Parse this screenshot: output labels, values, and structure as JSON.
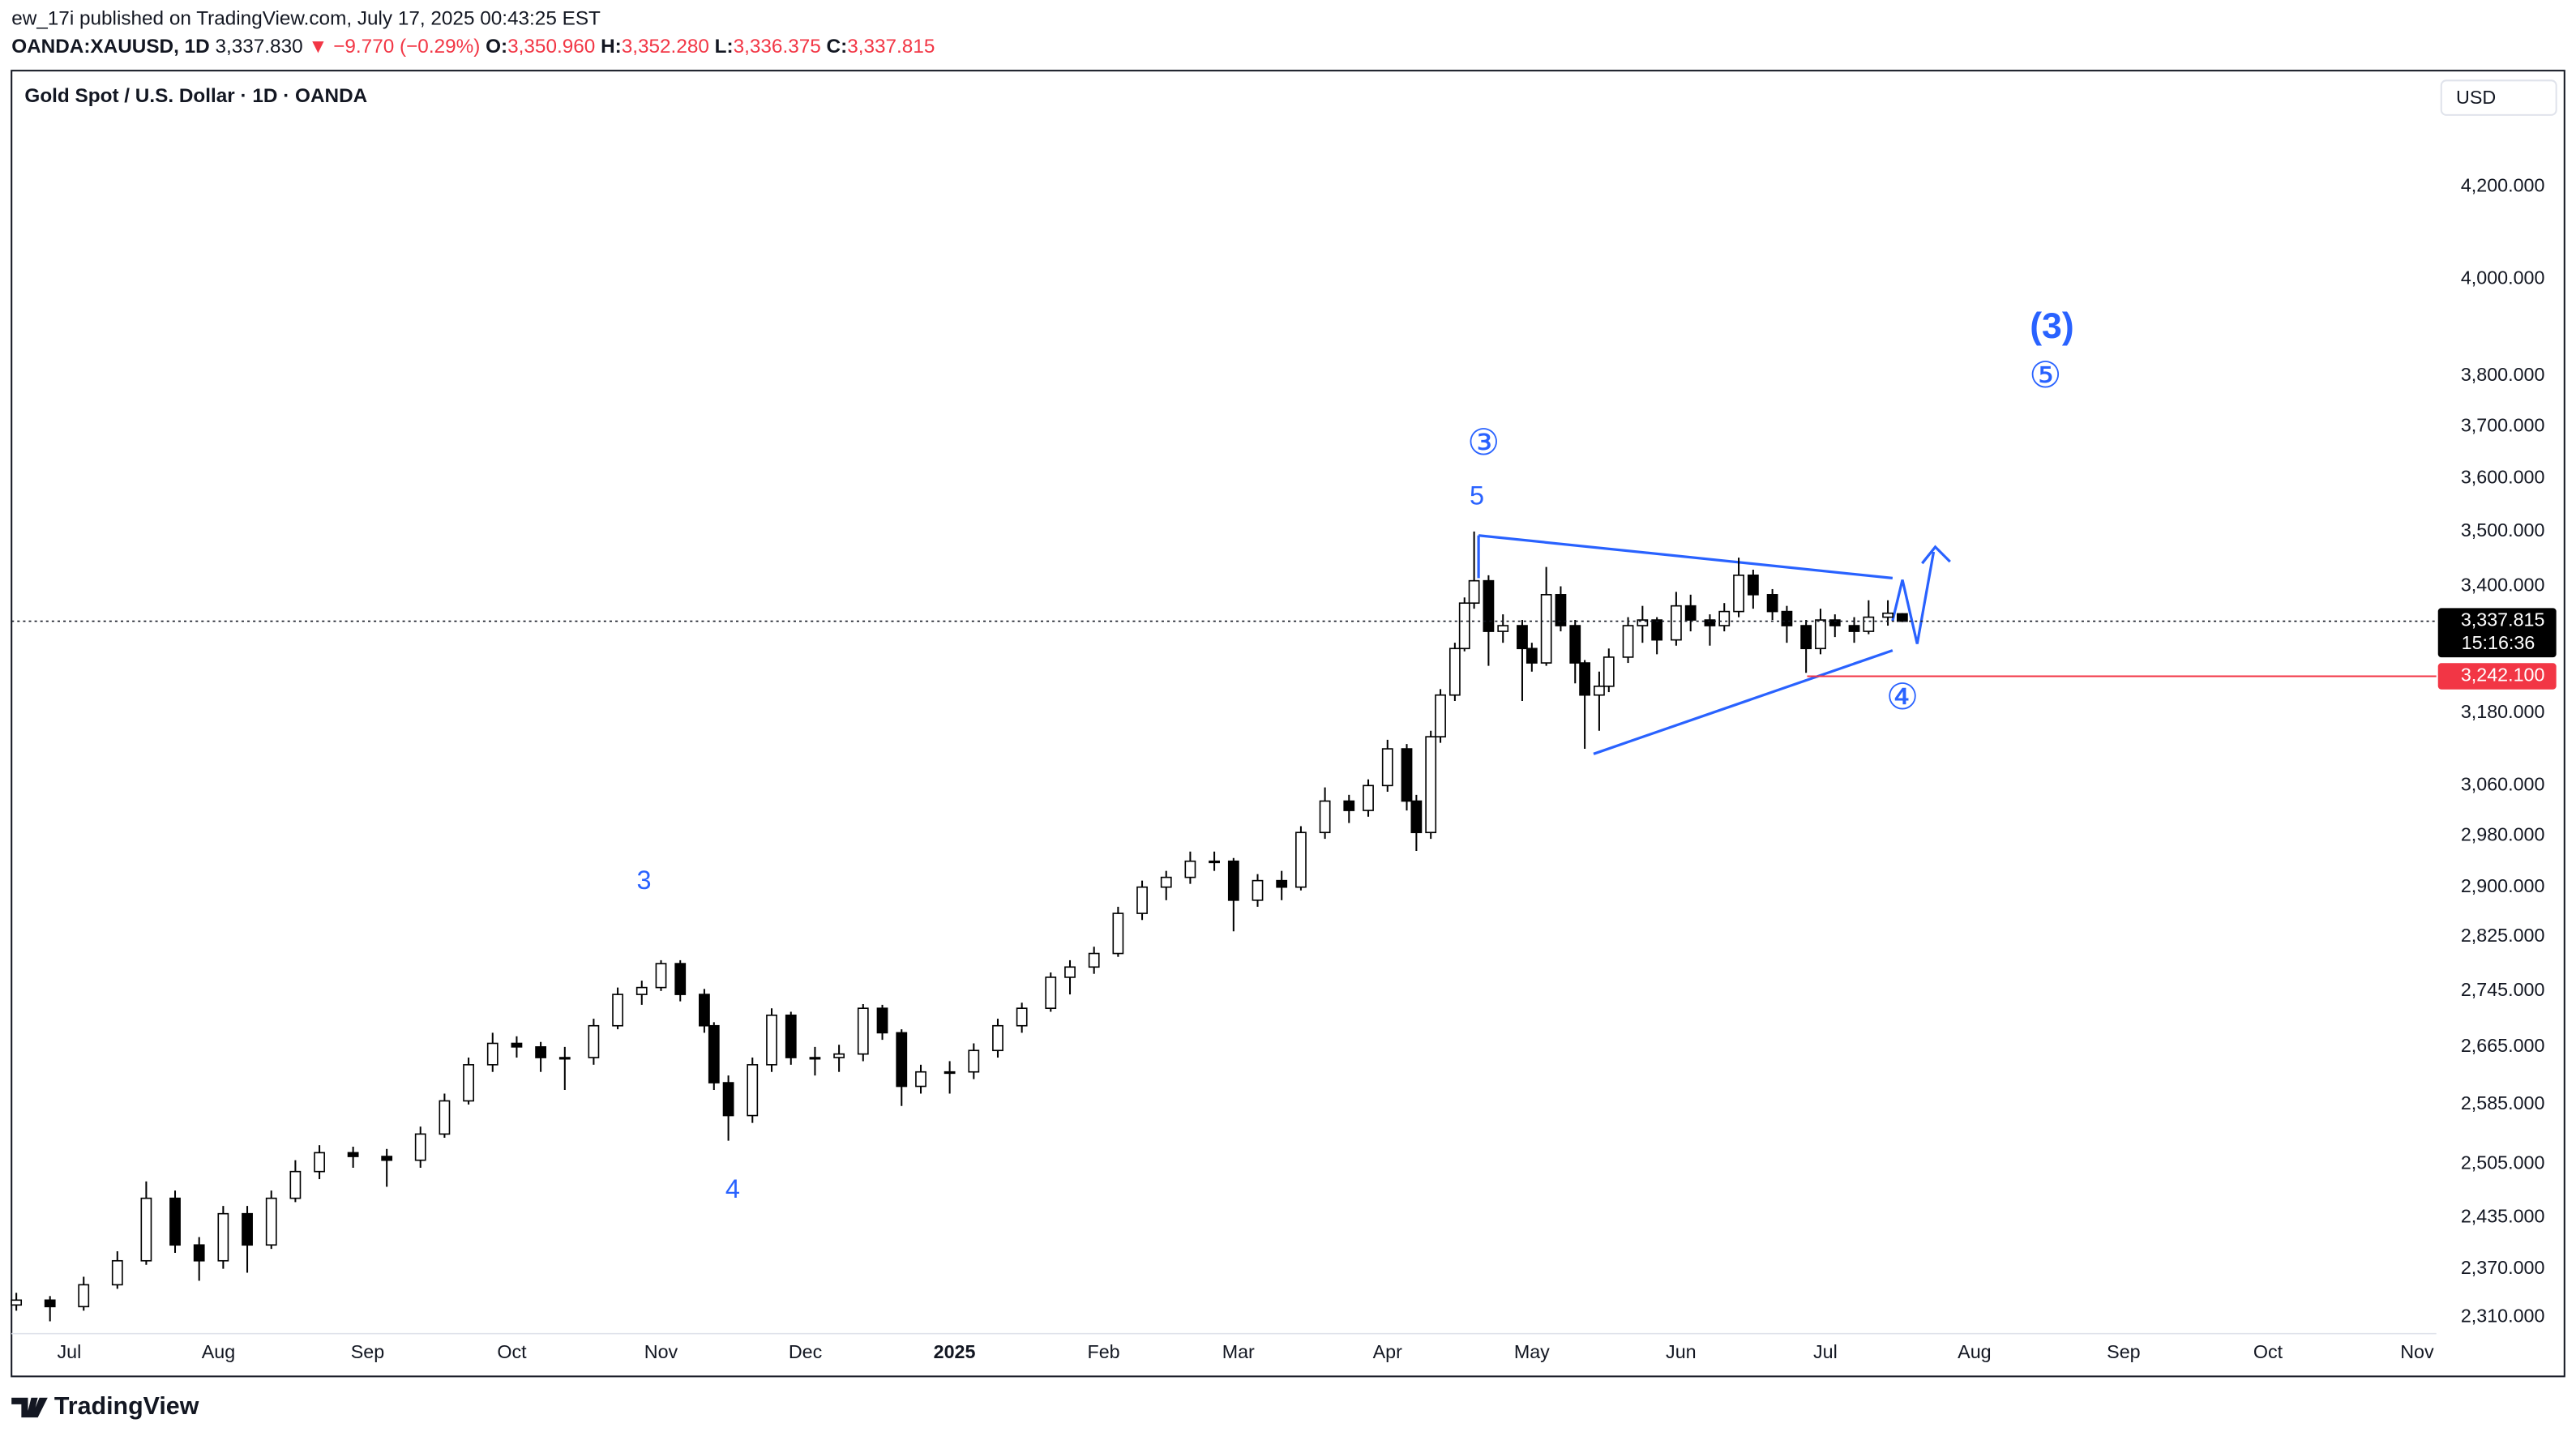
{
  "header": {
    "published": "ew_17i published on TradingView.com, July 17, 2025 00:43:25 EST",
    "symbol": "OANDA:XAUUSD, 1D",
    "last": "3,337.830",
    "change": "▼ −9.770 (−0.29%)",
    "o_label": "O:",
    "o": "3,350.960",
    "h_label": "H:",
    "h": "3,352.280",
    "l_label": "L:",
    "l": "3,336.375",
    "c_label": "C:",
    "c": "3,337.815"
  },
  "footer": {
    "brand": "TradingView"
  },
  "chart_data": {
    "type": "candlestick",
    "title": "Gold Spot / U.S. Dollar · 1D · OANDA",
    "currency": "USD",
    "log_scale": true,
    "grid": false,
    "up_color": "#ffffff",
    "down_color": "#000000",
    "wick_color": "#000000",
    "x": [
      -11,
      -4,
      3,
      10,
      16,
      22,
      27,
      32,
      37,
      42,
      47,
      52,
      59,
      66,
      73,
      78,
      83,
      88,
      93,
      98,
      103,
      109,
      114,
      119,
      123,
      127,
      132,
      134,
      137,
      142,
      146,
      150,
      155,
      160,
      165,
      169,
      173,
      177,
      183,
      188,
      193,
      198,
      204,
      208,
      213,
      218,
      223,
      228,
      233,
      238,
      242,
      247,
      252,
      256,
      261,
      266,
      270,
      274,
      278,
      280,
      283,
      285,
      288,
      290,
      292,
      295,
      298,
      302,
      304,
      307,
      310,
      313,
      315,
      318,
      320,
      324,
      327,
      330,
      334,
      337,
      341,
      344,
      347,
      350,
      354,
      357,
      361,
      364,
      367,
      371,
      374,
      378,
      381
    ],
    "open": [
      2325,
      2331,
      2323,
      2350,
      2380,
      2460,
      2400,
      2380,
      2440,
      2400,
      2460,
      2495,
      2520,
      2515,
      2510,
      2545,
      2590,
      2640,
      2670,
      2665,
      2650,
      2650,
      2695,
      2740,
      2750,
      2785,
      2740,
      2695,
      2615,
      2570,
      2640,
      2710,
      2650,
      2650,
      2655,
      2720,
      2685,
      2610,
      2630,
      2630,
      2660,
      2695,
      2720,
      2765,
      2780,
      2800,
      2860,
      2900,
      2915,
      2940,
      2940,
      2880,
      2910,
      2900,
      2985,
      3035,
      3020,
      3060,
      3120,
      3035,
      2985,
      3140,
      3210,
      3290,
      3370,
      3410,
      3320,
      3330,
      3290,
      3265,
      3385,
      3330,
      3265,
      3210,
      3225,
      3275,
      3330,
      3340,
      3305,
      3365,
      3340,
      3330,
      3355,
      3420,
      3385,
      3355,
      3330,
      3290,
      3340,
      3330,
      3320,
      3345,
      3350.96
    ],
    "high": [
      2340,
      2336,
      2360,
      2392,
      2482,
      2470,
      2410,
      2450,
      2450,
      2470,
      2510,
      2530,
      2528,
      2525,
      2555,
      2600,
      2650,
      2685,
      2680,
      2672,
      2665,
      2705,
      2750,
      2760,
      2790,
      2790,
      2748,
      2700,
      2625,
      2650,
      2720,
      2715,
      2665,
      2668,
      2726,
      2725,
      2690,
      2640,
      2645,
      2670,
      2705,
      2728,
      2772,
      2790,
      2810,
      2870,
      2910,
      2925,
      2955,
      2955,
      2945,
      2920,
      2925,
      2995,
      3057,
      3045,
      3070,
      3135,
      3128,
      3045,
      3150,
      3220,
      3300,
      3380,
      3500,
      3420,
      3350,
      3340,
      3300,
      3435,
      3400,
      3340,
      3270,
      3250,
      3290,
      3345,
      3365,
      3345,
      3390,
      3385,
      3350,
      3370,
      3452,
      3430,
      3395,
      3365,
      3340,
      3360,
      3350,
      3345,
      3375,
      3375,
      3352.28
    ],
    "low": [
      2318,
      2305,
      2318,
      2345,
      2375,
      2390,
      2355,
      2370,
      2365,
      2395,
      2455,
      2485,
      2500,
      2475,
      2500,
      2540,
      2585,
      2630,
      2650,
      2630,
      2605,
      2640,
      2690,
      2725,
      2745,
      2730,
      2685,
      2605,
      2536,
      2560,
      2630,
      2640,
      2625,
      2630,
      2645,
      2675,
      2583,
      2600,
      2600,
      2620,
      2650,
      2685,
      2715,
      2740,
      2770,
      2795,
      2850,
      2880,
      2905,
      2925,
      2833,
      2870,
      2880,
      2895,
      2975,
      3000,
      3010,
      3050,
      3020,
      2956,
      2975,
      3130,
      3200,
      3285,
      3360,
      3260,
      3300,
      3200,
      3250,
      3260,
      3320,
      3230,
      3120,
      3150,
      3215,
      3265,
      3300,
      3280,
      3295,
      3320,
      3295,
      3320,
      3345,
      3360,
      3340,
      3300,
      3248,
      3280,
      3310,
      3300,
      3315,
      3330,
      3336.375
    ],
    "close": [
      2331,
      2323,
      2350,
      2380,
      2460,
      2400,
      2380,
      2440,
      2400,
      2460,
      2495,
      2520,
      2515,
      2510,
      2545,
      2590,
      2640,
      2670,
      2665,
      2650,
      2650,
      2695,
      2740,
      2750,
      2785,
      2740,
      2695,
      2615,
      2570,
      2640,
      2710,
      2650,
      2650,
      2655,
      2720,
      2685,
      2610,
      2630,
      2630,
      2660,
      2695,
      2720,
      2765,
      2780,
      2800,
      2860,
      2900,
      2915,
      2940,
      2940,
      2880,
      2910,
      2900,
      2985,
      3035,
      3020,
      3060,
      3120,
      3035,
      2985,
      3140,
      3210,
      3290,
      3370,
      3410,
      3320,
      3330,
      3290,
      3265,
      3385,
      3330,
      3265,
      3210,
      3225,
      3275,
      3330,
      3340,
      3305,
      3365,
      3340,
      3330,
      3355,
      3420,
      3385,
      3355,
      3330,
      3290,
      3340,
      3330,
      3320,
      3345,
      3352,
      3337.815
    ],
    "xlim": [
      -12,
      492
    ],
    "xticks": [
      {
        "value": 0,
        "label": "Jul"
      },
      {
        "value": 31,
        "label": "Aug"
      },
      {
        "value": 62,
        "label": "Sep"
      },
      {
        "value": 92,
        "label": "Oct"
      },
      {
        "value": 123,
        "label": "Nov"
      },
      {
        "value": 153,
        "label": "Dec"
      },
      {
        "value": 184,
        "label": "2025"
      },
      {
        "value": 215,
        "label": "Feb"
      },
      {
        "value": 243,
        "label": "Mar"
      },
      {
        "value": 274,
        "label": "Apr"
      },
      {
        "value": 304,
        "label": "May"
      },
      {
        "value": 335,
        "label": "Jun"
      },
      {
        "value": 365,
        "label": "Jul"
      },
      {
        "value": 396,
        "label": "Aug"
      },
      {
        "value": 427,
        "label": "Sep"
      },
      {
        "value": 457,
        "label": "Oct"
      },
      {
        "value": 488,
        "label": "Nov"
      }
    ],
    "ylim": [
      2290,
      4466
    ],
    "yticks": [
      {
        "value": 4200,
        "label": "4,200.000"
      },
      {
        "value": 4000,
        "label": "4,000.000"
      },
      {
        "value": 3800,
        "label": "3,800.000"
      },
      {
        "value": 3700,
        "label": "3,700.000"
      },
      {
        "value": 3600,
        "label": "3,600.000"
      },
      {
        "value": 3500,
        "label": "3,500.000"
      },
      {
        "value": 3400,
        "label": "3,400.000"
      },
      {
        "value": 3180,
        "label": "3,180.000"
      },
      {
        "value": 3060,
        "label": "3,060.000"
      },
      {
        "value": 2980,
        "label": "2,980.000"
      },
      {
        "value": 2900,
        "label": "2,900.000"
      },
      {
        "value": 2825,
        "label": "2,825.000"
      },
      {
        "value": 2745,
        "label": "2,745.000"
      },
      {
        "value": 2665,
        "label": "2,665.000"
      },
      {
        "value": 2585,
        "label": "2,585.000"
      },
      {
        "value": 2505,
        "label": "2,505.000"
      },
      {
        "value": 2435,
        "label": "2,435.000"
      },
      {
        "value": 2370,
        "label": "2,370.000"
      },
      {
        "value": 2310,
        "label": "2,310.000"
      }
    ],
    "last_price": {
      "value": 3337.815,
      "label": "3,337.815"
    },
    "countdown": "15:16:36",
    "level": {
      "value": 3242.1,
      "label": "3,242.100"
    },
    "level_color": "#f23645",
    "annotation_color": "#2962ff",
    "annotations": [
      "3",
      "4",
      "5",
      "③",
      "④",
      "(3)",
      "⑤"
    ]
  }
}
